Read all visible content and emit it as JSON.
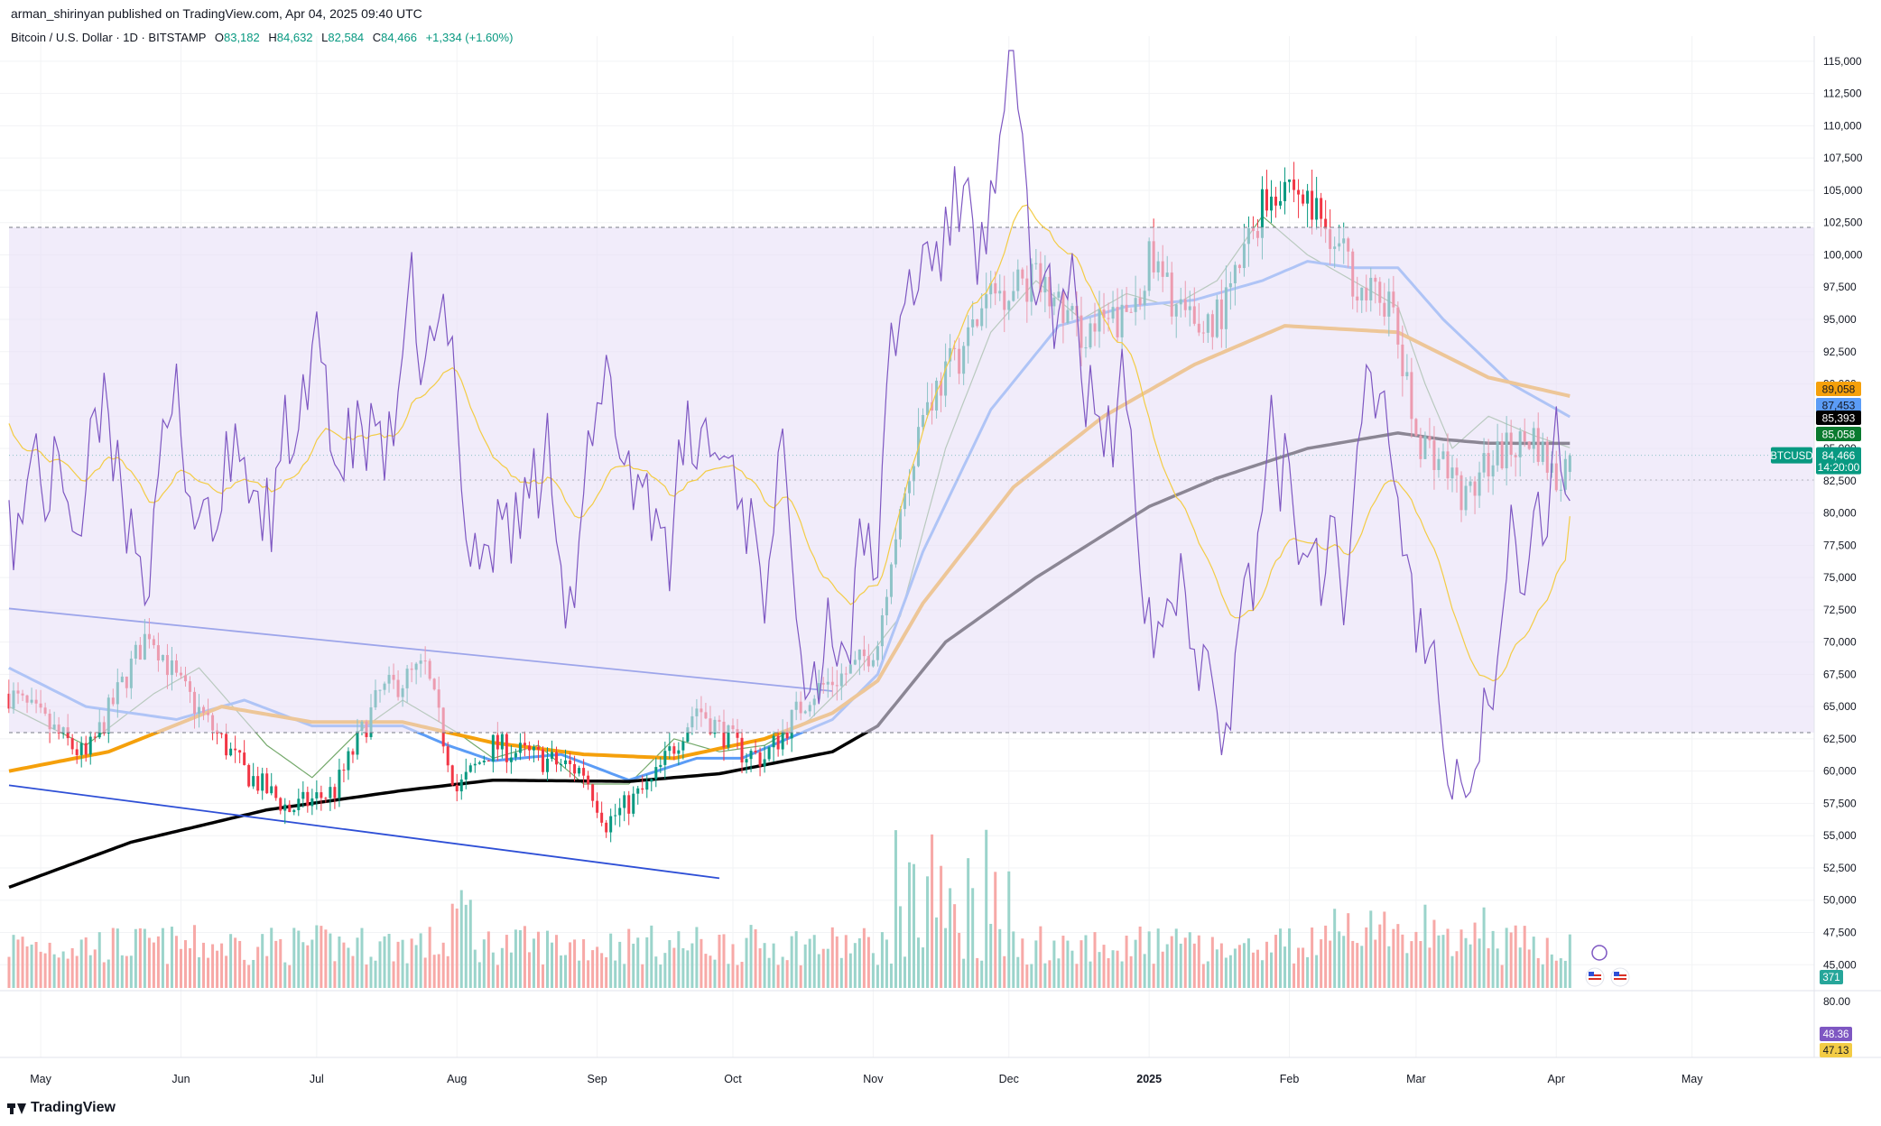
{
  "header": {
    "published_by": "arman_shirinyan published on TradingView.com, Apr 04, 2025 09:40 UTC",
    "symbol_title": "Bitcoin / U.S. Dollar · 1D · BITSTAMP",
    "ohlc": [
      {
        "key": "O",
        "value": "83,182"
      },
      {
        "key": "H",
        "value": "84,632"
      },
      {
        "key": "L",
        "value": "82,584"
      },
      {
        "key": "C",
        "value": "84,466"
      }
    ],
    "change": "+1,334 (+1.60%)"
  },
  "footer": {
    "brand": "TradingView"
  },
  "colors": {
    "up": "#089981",
    "down": "#f23645",
    "vol_up": "#9bd4cb",
    "vol_down": "#f7a9a7",
    "ma_black": "#000000",
    "ma_orange": "#f5a00b",
    "ma_blue": "#5b9cf6",
    "ma_green": "#74a96b",
    "channel": "#2e4fd6",
    "rsi": "#7e57c2",
    "rsi_ma": "#f3cc45",
    "rsi_band": "#e8e0f7"
  },
  "chart_data": {
    "type": "candlestick",
    "title": "Bitcoin / U.S. Dollar · 1D · BITSTAMP",
    "x_tick_labels": [
      "May",
      "Jun",
      "Jul",
      "Aug",
      "Sep",
      "Oct",
      "Nov",
      "Dec",
      "2025",
      "Feb",
      "Mar",
      "Apr",
      "May"
    ],
    "x_ticks_days": [
      0,
      31,
      61,
      92,
      123,
      153,
      184,
      214,
      245,
      276,
      304,
      335,
      365
    ],
    "x_range_days": [
      -7,
      392
    ],
    "y_range": [
      43200,
      116600
    ],
    "y_tick_values": [
      45000,
      47500,
      50000,
      52500,
      55000,
      57500,
      60000,
      62500,
      65000,
      67500,
      70000,
      72500,
      75000,
      77500,
      80000,
      82500,
      85000,
      87500,
      90000,
      92500,
      95000,
      97500,
      100000,
      102500,
      105000,
      107500,
      110000,
      112500,
      115000
    ],
    "y_tick_labels": [
      "45,000",
      "47,500",
      "50,000",
      "52,500",
      "55,000",
      "57,500",
      "60,000",
      "62,500",
      "65,000",
      "67,500",
      "70,000",
      "72,500",
      "75,000",
      "77,500",
      "80,000",
      "82,500",
      "85,000",
      "87,500",
      "90,000",
      "92,500",
      "95,000",
      "97,500",
      "100,000",
      "102,500",
      "105,000",
      "107,500",
      "110,000",
      "112,500",
      "115,000"
    ],
    "last_price": 84466,
    "last_label": "BTCUSD",
    "last_value_label": "84,466",
    "countdown": "14:20:00",
    "price_badges": [
      {
        "value": 89058,
        "label": "89,058",
        "color": "#f5a00b"
      },
      {
        "value": 87453,
        "label": "87,453",
        "color": "#5b9cf6"
      },
      {
        "value": 85393,
        "label": "85,393",
        "color": "#000000"
      },
      {
        "value": 85058,
        "label": "85,058",
        "color": "#0a7a2e"
      }
    ],
    "volume_label": "371",
    "close_anchors": {
      "days": [
        -7,
        0,
        10,
        24,
        30,
        45,
        55,
        65,
        75,
        85,
        92,
        100,
        110,
        120,
        125,
        135,
        145,
        155,
        160,
        170,
        180,
        185,
        188,
        195,
        205,
        210,
        220,
        230,
        240,
        245,
        255,
        262,
        270,
        275,
        285,
        292,
        298,
        304,
        310,
        315,
        320,
        330,
        335,
        338
      ],
      "values": [
        66000,
        64000,
        61000,
        71000,
        67000,
        60000,
        57000,
        58500,
        66000,
        68000,
        58500,
        62000,
        61000,
        60000,
        56000,
        59000,
        65000,
        61500,
        61000,
        66000,
        68000,
        70000,
        77000,
        88000,
        93500,
        97000,
        98000,
        94000,
        95000,
        99500,
        94000,
        96000,
        104000,
        106000,
        102000,
        97000,
        96500,
        86000,
        84000,
        81000,
        84000,
        86000,
        82500,
        84466
      ]
    },
    "ma_black": {
      "days": [
        -7,
        20,
        50,
        80,
        100,
        130,
        150,
        175,
        185,
        200,
        220,
        245,
        260,
        280,
        300,
        310,
        320,
        338
      ],
      "values": [
        51000,
        54500,
        57000,
        58500,
        59300,
        59200,
        59800,
        61500,
        63500,
        70000,
        75000,
        80500,
        82700,
        85000,
        86200,
        85700,
        85400,
        85393
      ]
    },
    "ma_orange": {
      "days": [
        -7,
        15,
        40,
        60,
        80,
        100,
        120,
        140,
        160,
        175,
        185,
        195,
        215,
        235,
        255,
        275,
        300,
        320,
        338
      ],
      "values": [
        60000,
        61500,
        65000,
        63800,
        63800,
        62200,
        61300,
        61000,
        62500,
        64500,
        67000,
        73000,
        82000,
        87500,
        91500,
        94500,
        94000,
        90500,
        89058
      ]
    },
    "ma_blue": {
      "days": [
        -7,
        10,
        30,
        45,
        60,
        80,
        90,
        100,
        115,
        130,
        145,
        155,
        175,
        185,
        195,
        210,
        225,
        240,
        255,
        270,
        280,
        290,
        300,
        310,
        325,
        338
      ],
      "values": [
        68000,
        65000,
        64000,
        65500,
        63500,
        63500,
        62000,
        60800,
        61300,
        59300,
        61000,
        61000,
        64000,
        67500,
        77000,
        88000,
        94500,
        96000,
        96500,
        98000,
        99500,
        99000,
        99000,
        95000,
        90000,
        87453
      ]
    },
    "ma_green": {
      "days": [
        -7,
        10,
        25,
        35,
        50,
        60,
        70,
        80,
        92,
        100,
        110,
        120,
        130,
        140,
        150,
        160,
        170,
        180,
        190,
        200,
        210,
        220,
        230,
        240,
        250,
        260,
        270,
        280,
        290,
        300,
        306,
        312,
        320,
        330,
        338
      ],
      "values": [
        65000,
        62000,
        66000,
        68000,
        62000,
        59500,
        63000,
        65500,
        63000,
        61000,
        62000,
        59000,
        59000,
        62500,
        61500,
        62000,
        64000,
        67500,
        72000,
        85000,
        94000,
        98000,
        95000,
        97000,
        96000,
        98000,
        103000,
        100000,
        98000,
        96000,
        90000,
        85000,
        87500,
        86000,
        85058
      ]
    },
    "channel_upper": {
      "days": [
        -7,
        175
      ],
      "values": [
        72600,
        66200
      ]
    },
    "channel_lower": {
      "days": [
        -7,
        150
      ],
      "values": [
        58900,
        51700
      ]
    },
    "rsi": {
      "range": [
        0,
        100
      ],
      "level_labels": [
        "80.00"
      ],
      "value_labels": [
        {
          "label": "48.36",
          "value": 48.36,
          "color": "#7e57c2"
        },
        {
          "label": "47.13",
          "value": 47.13,
          "color": "#f3cc45"
        }
      ]
    }
  }
}
